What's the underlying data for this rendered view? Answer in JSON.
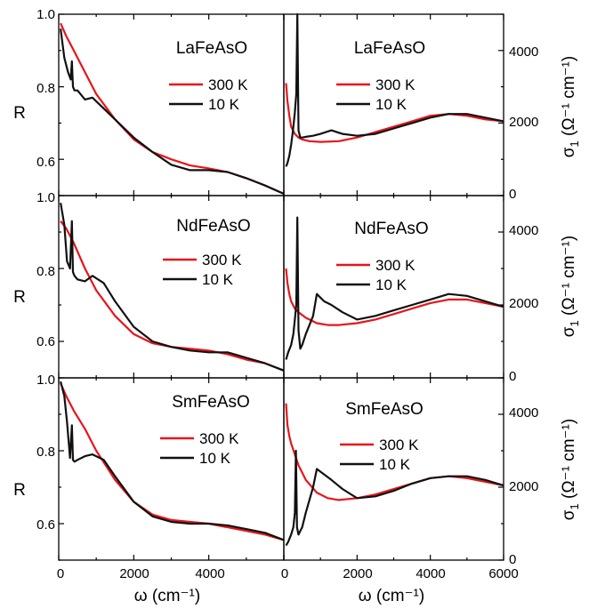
{
  "colors": {
    "300K": "#e8141a",
    "10K": "#111111"
  },
  "left_axis": {
    "ylabel": "R",
    "xlabel": "ω (cm⁻¹)",
    "xticks": [
      "0",
      "2000",
      "4000"
    ],
    "yticks_top": [
      "1.0",
      "0.8",
      "0.6"
    ],
    "yticks_mid": [
      "1.0",
      "0.8",
      "0.6"
    ],
    "yticks_bot": [
      "1.0",
      "0.8",
      "0.6"
    ]
  },
  "right_axis": {
    "ylabel_main": "σ",
    "ylabel_sub": "1",
    "ylabel_unit": " (Ω⁻¹ cm⁻¹)",
    "xlabel": "ω (cm⁻¹)",
    "xticks": [
      "0",
      "2000",
      "4000",
      "6000"
    ],
    "yticks": [
      "0",
      "2000",
      "4000"
    ]
  },
  "chart_data": [
    {
      "type": "line",
      "panel": "R-LaFeAsO",
      "title": "LaFeAsO",
      "xlabel": "ω (cm⁻¹)",
      "ylabel": "R",
      "xlim": [
        0,
        6000
      ],
      "ylim": [
        0.5,
        1.0
      ],
      "legend": [
        "300 K",
        "10 K"
      ],
      "series": [
        {
          "name": "300 K",
          "x": [
            50,
            200,
            400,
            700,
            1000,
            1500,
            2000,
            2500,
            3000,
            3500,
            4000,
            4500,
            5000,
            5500,
            6000
          ],
          "y": [
            0.975,
            0.94,
            0.9,
            0.84,
            0.78,
            0.71,
            0.655,
            0.62,
            0.6,
            0.583,
            0.575,
            0.565,
            0.548,
            0.528,
            0.505
          ]
        },
        {
          "name": "10 K",
          "x": [
            50,
            150,
            250,
            320,
            350,
            380,
            420,
            500,
            700,
            900,
            1200,
            1500,
            2000,
            2500,
            3000,
            3500,
            4000,
            4500,
            5000,
            5500,
            6000
          ],
          "y": [
            0.96,
            0.88,
            0.84,
            0.82,
            0.87,
            0.8,
            0.79,
            0.79,
            0.765,
            0.77,
            0.74,
            0.71,
            0.66,
            0.62,
            0.585,
            0.57,
            0.57,
            0.565,
            0.548,
            0.528,
            0.505
          ]
        }
      ]
    },
    {
      "type": "line",
      "panel": "R-NdFeAsO",
      "title": "NdFeAsO",
      "xlabel": "ω (cm⁻¹)",
      "ylabel": "R",
      "xlim": [
        0,
        6000
      ],
      "ylim": [
        0.5,
        1.0
      ],
      "legend": [
        "300 K",
        "10 K"
      ],
      "series": [
        {
          "name": "300 K",
          "x": [
            50,
            200,
            400,
            700,
            1000,
            1500,
            2000,
            2500,
            3000,
            3500,
            4000,
            4500,
            5000,
            5500,
            6000
          ],
          "y": [
            0.93,
            0.91,
            0.87,
            0.8,
            0.74,
            0.67,
            0.62,
            0.595,
            0.585,
            0.58,
            0.575,
            0.565,
            0.55,
            0.54,
            0.52
          ]
        },
        {
          "name": "10 K",
          "x": [
            50,
            150,
            220,
            300,
            350,
            380,
            420,
            500,
            700,
            900,
            1200,
            1500,
            2000,
            2500,
            3000,
            3500,
            4000,
            4500,
            5000,
            5500,
            6000
          ],
          "y": [
            0.98,
            0.92,
            0.82,
            0.8,
            0.93,
            0.79,
            0.78,
            0.77,
            0.765,
            0.78,
            0.76,
            0.71,
            0.64,
            0.6,
            0.585,
            0.575,
            0.57,
            0.57,
            0.555,
            0.54,
            0.52
          ]
        }
      ]
    },
    {
      "type": "line",
      "panel": "R-SmFeAsO",
      "title": "SmFeAsO",
      "xlabel": "ω (cm⁻¹)",
      "ylabel": "R",
      "xlim": [
        0,
        6000
      ],
      "ylim": [
        0.5,
        1.0
      ],
      "legend": [
        "300 K",
        "10 K"
      ],
      "series": [
        {
          "name": "300 K",
          "x": [
            50,
            200,
            400,
            700,
            1000,
            1500,
            2000,
            2500,
            3000,
            3500,
            4000,
            4500,
            5000,
            5500,
            6000
          ],
          "y": [
            0.985,
            0.95,
            0.91,
            0.86,
            0.8,
            0.72,
            0.66,
            0.625,
            0.61,
            0.605,
            0.6,
            0.59,
            0.58,
            0.57,
            0.555
          ]
        },
        {
          "name": "10 K",
          "x": [
            50,
            150,
            220,
            300,
            350,
            380,
            420,
            500,
            700,
            900,
            1200,
            1500,
            2000,
            2500,
            3000,
            3500,
            4000,
            4500,
            5000,
            5500,
            6000
          ],
          "y": [
            0.99,
            0.95,
            0.88,
            0.78,
            0.87,
            0.775,
            0.77,
            0.775,
            0.785,
            0.79,
            0.775,
            0.73,
            0.66,
            0.62,
            0.605,
            0.6,
            0.6,
            0.595,
            0.585,
            0.575,
            0.555
          ]
        }
      ]
    },
    {
      "type": "line",
      "panel": "sigma-LaFeAsO",
      "title": "LaFeAsO",
      "xlabel": "ω (cm⁻¹)",
      "ylabel": "σ1 (Ω⁻¹ cm⁻¹)",
      "xlim": [
        0,
        6000
      ],
      "ylim": [
        0,
        5000
      ],
      "legend": [
        "300 K",
        "10 K"
      ],
      "series": [
        {
          "name": "300 K",
          "x": [
            60,
            100,
            150,
            200,
            300,
            400,
            500,
            700,
            1000,
            1500,
            2000,
            2500,
            3000,
            3500,
            4000,
            4500,
            5000,
            5500,
            6000
          ],
          "y": [
            3100,
            2600,
            2200,
            1900,
            1700,
            1600,
            1550,
            1500,
            1480,
            1500,
            1600,
            1750,
            1900,
            2050,
            2200,
            2250,
            2200,
            2100,
            2050
          ]
        },
        {
          "name": "10 K",
          "x": [
            60,
            100,
            150,
            200,
            250,
            300,
            340,
            370,
            400,
            450,
            500,
            600,
            800,
            1000,
            1300,
            1600,
            2000,
            2500,
            3000,
            3500,
            4000,
            4500,
            5000,
            5500,
            6000
          ],
          "y": [
            800,
            900,
            1100,
            1400,
            1800,
            2300,
            2800,
            5000,
            1800,
            1600,
            1600,
            1620,
            1650,
            1700,
            1800,
            1700,
            1650,
            1700,
            1850,
            2000,
            2150,
            2250,
            2250,
            2150,
            2050
          ]
        }
      ]
    },
    {
      "type": "line",
      "panel": "sigma-NdFeAsO",
      "title": "NdFeAsO",
      "xlabel": "ω (cm⁻¹)",
      "ylabel": "σ1 (Ω⁻¹ cm⁻¹)",
      "xlim": [
        0,
        6000
      ],
      "ylim": [
        0,
        5000
      ],
      "legend": [
        "300 K",
        "10 K"
      ],
      "series": [
        {
          "name": "300 K",
          "x": [
            60,
            100,
            150,
            200,
            300,
            400,
            600,
            900,
            1200,
            1500,
            2000,
            2500,
            3000,
            3500,
            4000,
            4500,
            5000,
            5500,
            6000
          ],
          "y": [
            3000,
            2600,
            2300,
            2100,
            1900,
            1800,
            1650,
            1500,
            1450,
            1450,
            1500,
            1600,
            1750,
            1900,
            2050,
            2150,
            2150,
            2050,
            1950
          ]
        },
        {
          "name": "10 K",
          "x": [
            60,
            120,
            200,
            260,
            300,
            340,
            370,
            400,
            450,
            500,
            600,
            800,
            900,
            1100,
            1300,
            1600,
            2000,
            2500,
            3000,
            3500,
            4000,
            4500,
            5000,
            5500,
            6000
          ],
          "y": [
            500,
            700,
            900,
            1200,
            1600,
            2000,
            4400,
            1300,
            800,
            900,
            1200,
            1700,
            2300,
            2100,
            2000,
            1800,
            1600,
            1700,
            1850,
            2000,
            2150,
            2300,
            2250,
            2100,
            1950
          ]
        }
      ]
    },
    {
      "type": "line",
      "panel": "sigma-SmFeAsO",
      "title": "SmFeAsO",
      "xlabel": "ω (cm⁻¹)",
      "ylabel": "σ1 (Ω⁻¹ cm⁻¹)",
      "xlim": [
        0,
        6000
      ],
      "ylim": [
        0,
        5000
      ],
      "legend": [
        "300 K",
        "10 K"
      ],
      "series": [
        {
          "name": "300 K",
          "x": [
            60,
            100,
            150,
            200,
            300,
            400,
            600,
            900,
            1200,
            1500,
            2000,
            2500,
            3000,
            3500,
            4000,
            4500,
            5000,
            5500,
            6000
          ],
          "y": [
            4300,
            3700,
            3400,
            3200,
            2900,
            2600,
            2200,
            1850,
            1700,
            1650,
            1700,
            1800,
            1950,
            2100,
            2250,
            2300,
            2250,
            2150,
            2050
          ]
        },
        {
          "name": "10 K",
          "x": [
            60,
            120,
            200,
            260,
            300,
            330,
            360,
            400,
            450,
            500,
            600,
            800,
            900,
            1100,
            1300,
            1600,
            2000,
            2500,
            3000,
            3500,
            4000,
            4500,
            5000,
            5500,
            6000
          ],
          "y": [
            400,
            500,
            700,
            900,
            1300,
            3000,
            900,
            700,
            800,
            900,
            1300,
            2000,
            2500,
            2350,
            2200,
            1950,
            1700,
            1750,
            1900,
            2100,
            2250,
            2300,
            2300,
            2200,
            2050
          ]
        }
      ]
    }
  ]
}
